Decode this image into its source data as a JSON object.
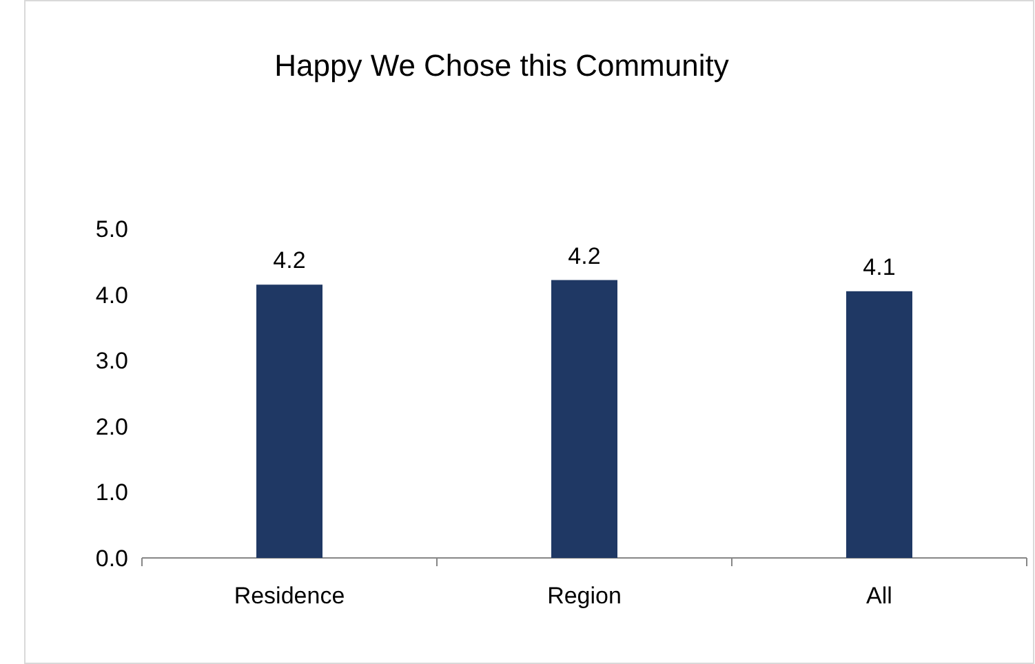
{
  "chart_data": {
    "type": "bar",
    "title": "Happy We Chose this Community",
    "categories": [
      "Residence",
      "Region",
      "All"
    ],
    "values": [
      4.15,
      4.22,
      4.05
    ],
    "value_labels": [
      "4.2",
      "4.2",
      "4.1"
    ],
    "color": "#1f3864",
    "ylim": [
      0,
      5
    ],
    "yticks": [
      {
        "value": 0,
        "label": "0.0"
      },
      {
        "value": 1,
        "label": "1.0"
      },
      {
        "value": 2,
        "label": "2.0"
      },
      {
        "value": 3,
        "label": "3.0"
      },
      {
        "value": 4,
        "label": "4.0"
      },
      {
        "value": 5,
        "label": "5.0"
      }
    ],
    "grid": false
  }
}
